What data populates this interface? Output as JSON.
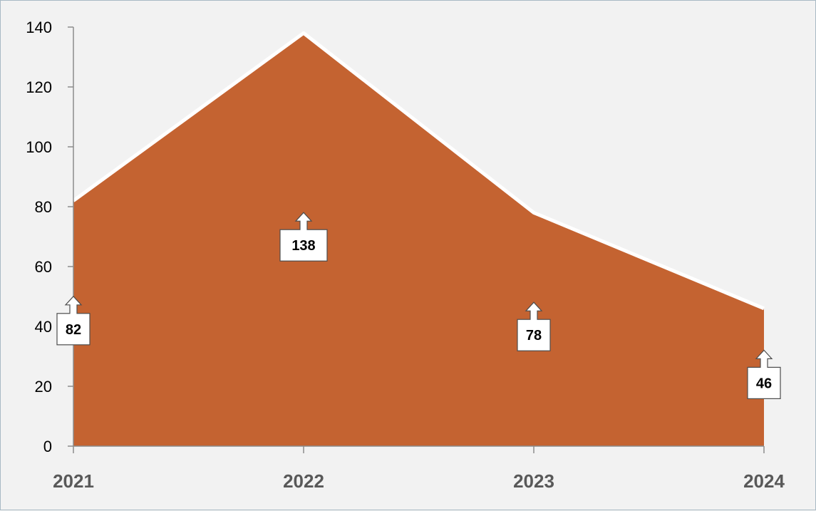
{
  "chart_data": {
    "type": "area",
    "categories": [
      "2021",
      "2022",
      "2023",
      "2024"
    ],
    "values": [
      82,
      138,
      78,
      46
    ],
    "ylim": [
      0,
      140
    ],
    "yticks": [
      0,
      20,
      40,
      60,
      80,
      100,
      120,
      140
    ],
    "grid": false,
    "legend": "none",
    "colors": {
      "area_fill": "#c46331",
      "area_edge": "#ffffff",
      "axis": "#8c8c8c",
      "background": "#f2f2f2",
      "label_box": "#ffffff",
      "label_border": "#4d4d4d"
    }
  }
}
